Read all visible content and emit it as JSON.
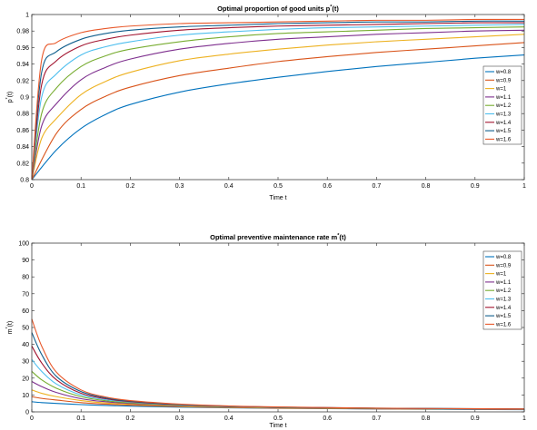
{
  "colors": [
    "#0072BD",
    "#D95319",
    "#EDB120",
    "#7E2F8E",
    "#77AC30",
    "#4DBEEE",
    "#A2142F",
    "#0F5E8C",
    "#E8582A"
  ],
  "chart_data": [
    {
      "type": "line",
      "title": "Optimal proportion of good units p*(t)",
      "title_main": "Optimal proportion of good units p",
      "title_sup": "*",
      "title_tail": "(t)",
      "xlabel": "Time t",
      "ylabel": "p*(t)",
      "ylabel_main": "p",
      "ylabel_sup": "*",
      "ylabel_tail": "(t)",
      "xlim": [
        0,
        1
      ],
      "ylim": [
        0.8,
        1
      ],
      "xticks": [
        "0",
        "0.1",
        "0.2",
        "0.3",
        "0.4",
        "0.5",
        "0.6",
        "0.7",
        "0.8",
        "0.9",
        "1"
      ],
      "yticks": [
        "0.8",
        "0.82",
        "0.84",
        "0.86",
        "0.88",
        "0.9",
        "0.92",
        "0.94",
        "0.96",
        "0.98",
        "1"
      ],
      "legend_position": "right",
      "series": [
        {
          "name": "w=0.8",
          "x": [
            0,
            0.05,
            0.1,
            0.15,
            0.2,
            0.3,
            0.4,
            0.5,
            0.6,
            0.7,
            0.8,
            0.9,
            1.0
          ],
          "values": [
            0.8,
            0.836,
            0.862,
            0.879,
            0.891,
            0.906,
            0.916,
            0.924,
            0.931,
            0.937,
            0.942,
            0.947,
            0.951
          ]
        },
        {
          "name": "w=0.9",
          "x": [
            0,
            0.05,
            0.1,
            0.15,
            0.2,
            0.3,
            0.4,
            0.5,
            0.6,
            0.7,
            0.8,
            0.9,
            1.0
          ],
          "values": [
            0.8,
            0.856,
            0.885,
            0.901,
            0.912,
            0.926,
            0.935,
            0.943,
            0.949,
            0.954,
            0.958,
            0.962,
            0.966
          ]
        },
        {
          "name": "w=1",
          "x": [
            0,
            0.02,
            0.05,
            0.1,
            0.15,
            0.2,
            0.3,
            0.4,
            0.5,
            0.6,
            0.7,
            0.8,
            0.9,
            1.0
          ],
          "values": [
            0.8,
            0.85,
            0.874,
            0.903,
            0.919,
            0.93,
            0.944,
            0.952,
            0.958,
            0.963,
            0.967,
            0.97,
            0.973,
            0.976
          ]
        },
        {
          "name": "w=1.1",
          "x": [
            0,
            0.02,
            0.05,
            0.1,
            0.15,
            0.2,
            0.3,
            0.4,
            0.5,
            0.6,
            0.7,
            0.8,
            0.9,
            1.0
          ],
          "values": [
            0.8,
            0.865,
            0.892,
            0.921,
            0.936,
            0.946,
            0.958,
            0.965,
            0.97,
            0.973,
            0.976,
            0.978,
            0.98,
            0.981
          ]
        },
        {
          "name": "w=1.2",
          "x": [
            0,
            0.02,
            0.05,
            0.1,
            0.15,
            0.2,
            0.3,
            0.4,
            0.5,
            0.6,
            0.7,
            0.8,
            0.9,
            1.0
          ],
          "values": [
            0.8,
            0.88,
            0.911,
            0.937,
            0.95,
            0.958,
            0.967,
            0.973,
            0.977,
            0.979,
            0.981,
            0.983,
            0.984,
            0.985
          ]
        },
        {
          "name": "w=1.3",
          "x": [
            0,
            0.02,
            0.05,
            0.1,
            0.15,
            0.2,
            0.3,
            0.4,
            0.5,
            0.6,
            0.7,
            0.8,
            0.9,
            1.0
          ],
          "values": [
            0.8,
            0.9,
            0.928,
            0.951,
            0.961,
            0.967,
            0.975,
            0.979,
            0.982,
            0.984,
            0.985,
            0.986,
            0.987,
            0.988
          ]
        },
        {
          "name": "w=1.4",
          "x": [
            0,
            0.02,
            0.05,
            0.1,
            0.15,
            0.2,
            0.3,
            0.4,
            0.5,
            0.6,
            0.7,
            0.8,
            0.9,
            1.0
          ],
          "values": [
            0.8,
            0.915,
            0.944,
            0.962,
            0.97,
            0.975,
            0.981,
            0.984,
            0.986,
            0.987,
            0.988,
            0.989,
            0.99,
            0.99
          ]
        },
        {
          "name": "w=1.5",
          "x": [
            0,
            0.02,
            0.05,
            0.1,
            0.15,
            0.2,
            0.3,
            0.4,
            0.5,
            0.6,
            0.7,
            0.8,
            0.9,
            1.0
          ],
          "values": [
            0.8,
            0.93,
            0.955,
            0.97,
            0.977,
            0.981,
            0.985,
            0.987,
            0.989,
            0.99,
            0.991,
            0.991,
            0.992,
            0.992
          ]
        },
        {
          "name": "w=1.6",
          "x": [
            0,
            0.02,
            0.05,
            0.1,
            0.15,
            0.2,
            0.3,
            0.4,
            0.5,
            0.6,
            0.7,
            0.8,
            0.9,
            1.0
          ],
          "values": [
            0.8,
            0.945,
            0.966,
            0.978,
            0.983,
            0.986,
            0.989,
            0.99,
            0.991,
            0.992,
            0.993,
            0.993,
            0.994,
            0.994
          ]
        }
      ]
    },
    {
      "type": "line",
      "title": "Optimal preventive maintenance rate m*(t)",
      "title_main": "Optimal preventive maintenance rate m",
      "title_sup": "*",
      "title_tail": "(t)",
      "xlabel": "Time t",
      "ylabel": "m*(t)",
      "ylabel_main": "m",
      "ylabel_sup": "*",
      "ylabel_tail": "(t)",
      "xlim": [
        0,
        1
      ],
      "ylim": [
        0,
        100
      ],
      "xticks": [
        "0",
        "0.1",
        "0.2",
        "0.3",
        "0.4",
        "0.5",
        "0.6",
        "0.7",
        "0.8",
        "0.9",
        "1"
      ],
      "yticks": [
        "0",
        "10",
        "20",
        "30",
        "40",
        "50",
        "60",
        "70",
        "80",
        "90",
        "100"
      ],
      "legend_position": "top-right",
      "series": [
        {
          "name": "w=0.8",
          "x": [
            0,
            0.02,
            0.05,
            0.1,
            0.15,
            0.2,
            0.3,
            0.4,
            0.5,
            0.7,
            1.0
          ],
          "values": [
            6,
            5.5,
            5,
            4.3,
            3.8,
            3.4,
            2.8,
            2.4,
            2.1,
            1.7,
            1.3
          ]
        },
        {
          "name": "w=0.9",
          "x": [
            0,
            0.02,
            0.05,
            0.1,
            0.15,
            0.2,
            0.3,
            0.4,
            0.5,
            0.7,
            1.0
          ],
          "values": [
            9,
            8,
            7,
            5.5,
            4.6,
            4,
            3.1,
            2.6,
            2.2,
            1.8,
            1.4
          ]
        },
        {
          "name": "w=1",
          "x": [
            0,
            0.02,
            0.05,
            0.1,
            0.15,
            0.2,
            0.3,
            0.4,
            0.5,
            0.7,
            1.0
          ],
          "values": [
            13,
            11,
            9,
            6.7,
            5.3,
            4.5,
            3.4,
            2.8,
            2.4,
            1.9,
            1.5
          ]
        },
        {
          "name": "w=1.1",
          "x": [
            0,
            0.02,
            0.05,
            0.1,
            0.15,
            0.2,
            0.3,
            0.4,
            0.5,
            0.7,
            1.0
          ],
          "values": [
            18,
            15,
            11.5,
            7.8,
            6,
            5,
            3.7,
            3,
            2.5,
            2,
            1.5
          ]
        },
        {
          "name": "w=1.2",
          "x": [
            0,
            0.02,
            0.05,
            0.1,
            0.15,
            0.2,
            0.3,
            0.4,
            0.5,
            0.7,
            1.0
          ],
          "values": [
            24,
            19,
            14,
            9,
            6.6,
            5.4,
            3.9,
            3.1,
            2.6,
            2,
            1.6
          ]
        },
        {
          "name": "w=1.3",
          "x": [
            0,
            0.02,
            0.05,
            0.1,
            0.15,
            0.2,
            0.3,
            0.4,
            0.5,
            0.7,
            1.0
          ],
          "values": [
            31,
            24,
            16.5,
            10,
            7.2,
            5.8,
            4.1,
            3.2,
            2.7,
            2.1,
            1.6
          ]
        },
        {
          "name": "w=1.4",
          "x": [
            0,
            0.02,
            0.05,
            0.1,
            0.15,
            0.2,
            0.3,
            0.4,
            0.5,
            0.7,
            1.0
          ],
          "values": [
            39,
            29,
            19,
            11,
            7.8,
            6.1,
            4.3,
            3.3,
            2.8,
            2.1,
            1.7
          ]
        },
        {
          "name": "w=1.5",
          "x": [
            0,
            0.02,
            0.05,
            0.1,
            0.15,
            0.2,
            0.3,
            0.4,
            0.5,
            0.7,
            1.0
          ],
          "values": [
            47,
            34,
            21,
            12,
            8.3,
            6.4,
            4.4,
            3.4,
            2.8,
            2.2,
            1.7
          ]
        },
        {
          "name": "w=1.6",
          "x": [
            0,
            0.02,
            0.05,
            0.1,
            0.15,
            0.2,
            0.3,
            0.4,
            0.5,
            0.7,
            1.0
          ],
          "values": [
            55,
            39,
            23.5,
            13,
            8.8,
            6.7,
            4.6,
            3.5,
            2.9,
            2.2,
            1.7
          ]
        }
      ]
    }
  ]
}
